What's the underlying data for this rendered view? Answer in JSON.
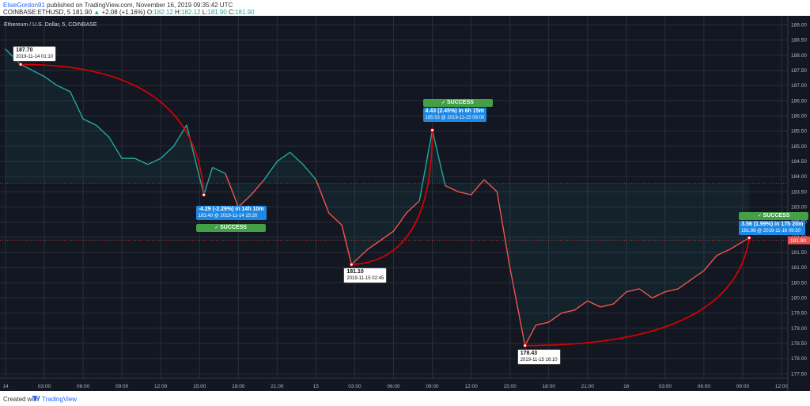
{
  "header": {
    "user": "ElsieGordon91",
    "published_text": " published on TradingView.com, November 16, 2019 09:35:42 UTC",
    "symbol": "COINBASE:ETHUSD, 5",
    "last": "181.90",
    "change_icon": "up-triangle-icon",
    "change": "+2.08 (+1.16%)",
    "open_label": "O:",
    "open": "182.12",
    "high_label": "H:",
    "high": "182.12",
    "low_label": "L:",
    "low": "181.90",
    "close_label": "C:",
    "close": "181.90"
  },
  "chart_data": {
    "type": "line",
    "title": "Ethereum / U.S. Dollar, 5, COINBASE",
    "ylim": [
      177.35,
      189.3
    ],
    "y_ticks": [
      "189.00",
      "188.50",
      "188.00",
      "187.50",
      "187.00",
      "186.50",
      "186.00",
      "185.50",
      "185.00",
      "184.50",
      "184.00",
      "183.50",
      "183.00",
      "182.50",
      "182.00",
      "181.50",
      "181.00",
      "180.50",
      "180.00",
      "179.50",
      "179.00",
      "178.50",
      "178.00",
      "177.50"
    ],
    "x_ticks": [
      "14",
      "03:00",
      "06:00",
      "09:00",
      "12:00",
      "15:00",
      "18:00",
      "21:00",
      "15",
      "03:00",
      "06:00",
      "09:00",
      "12:00",
      "15:00",
      "18:00",
      "21:00",
      "16",
      "03:00",
      "06:00",
      "09:00",
      "12:00"
    ],
    "x": [
      "2019-11-14 00:00",
      "2019-11-14 01:10",
      "2019-11-14 03:00",
      "2019-11-14 04:00",
      "2019-11-14 05:00",
      "2019-11-14 06:00",
      "2019-11-14 07:00",
      "2019-11-14 08:00",
      "2019-11-14 09:00",
      "2019-11-14 10:00",
      "2019-11-14 11:00",
      "2019-11-14 12:00",
      "2019-11-14 13:00",
      "2019-11-14 14:00",
      "2019-11-14 15:20",
      "2019-11-14 16:00",
      "2019-11-14 17:00",
      "2019-11-14 18:00",
      "2019-11-14 19:00",
      "2019-11-14 20:00",
      "2019-11-14 21:00",
      "2019-11-14 22:00",
      "2019-11-14 23:00",
      "2019-11-15 00:00",
      "2019-11-15 01:00",
      "2019-11-15 02:00",
      "2019-11-15 02:45",
      "2019-11-15 04:00",
      "2019-11-15 05:00",
      "2019-11-15 06:00",
      "2019-11-15 07:00",
      "2019-11-15 08:00",
      "2019-11-15 09:00",
      "2019-11-15 10:00",
      "2019-11-15 11:00",
      "2019-11-15 12:00",
      "2019-11-15 13:00",
      "2019-11-15 14:00",
      "2019-11-15 15:00",
      "2019-11-15 16:10",
      "2019-11-15 17:00",
      "2019-11-15 18:00",
      "2019-11-15 19:00",
      "2019-11-15 20:00",
      "2019-11-15 21:00",
      "2019-11-15 22:00",
      "2019-11-15 23:00",
      "2019-11-16 00:00",
      "2019-11-16 01:00",
      "2019-11-16 02:00",
      "2019-11-16 03:00",
      "2019-11-16 04:00",
      "2019-11-16 05:00",
      "2019-11-16 06:00",
      "2019-11-16 07:00",
      "2019-11-16 08:00",
      "2019-11-16 09:30"
    ],
    "series": [
      {
        "values": [
          188.2,
          187.7,
          187.3,
          187.0,
          186.8,
          185.9,
          185.7,
          185.3,
          184.6,
          184.6,
          184.4,
          184.6,
          185.0,
          185.7,
          183.4,
          184.3,
          184.1,
          183.0,
          183.4,
          183.9,
          184.5,
          184.8,
          184.4,
          183.9,
          182.8,
          182.4,
          181.1,
          181.6,
          181.9,
          182.2,
          182.8,
          183.2,
          185.53,
          183.7,
          183.5,
          183.4,
          183.9,
          183.5,
          181.0,
          178.43,
          179.1,
          179.2,
          179.5,
          179.6,
          179.9,
          179.7,
          179.8,
          180.2,
          180.3,
          180.0,
          180.2,
          180.3,
          180.6,
          180.9,
          181.4,
          181.6,
          181.98
        ]
      }
    ],
    "current_price": "181.90",
    "prev_close_level": 183.78,
    "annotations": [
      {
        "price_label": "187.70",
        "date": "2019-11-14 01:10"
      },
      {
        "price_label": "181.10",
        "date": "2019-11-15 02:45"
      },
      {
        "price_label": "178.43",
        "date": "2019-11-15 16:10"
      }
    ],
    "measurements": [
      {
        "change": "-4.29 (-2.29%) in 14h 10m",
        "detail": "183.40 @ 2019-11-14  15:20",
        "status": "SUCCESS",
        "status_icon": "check-icon",
        "from": 187.7,
        "to": 183.4
      },
      {
        "change": "4.43 (2.45%) in 6h 15m",
        "detail": "185.53 @ 2019-11-15  09:00",
        "status": "SUCCESS",
        "status_icon": "check-icon",
        "from": 181.1,
        "to": 185.53
      },
      {
        "change": "3.56 (1.99%) in 17h 20m",
        "detail": "181.98 @ 2019-11-16  09:30",
        "status": "SUCCESS",
        "status_icon": "check-icon",
        "from": 178.43,
        "to": 181.98
      }
    ],
    "colors": {
      "background": "#131722",
      "grid": "#2a2e39",
      "up": "#26a69a",
      "down": "#ef5350",
      "arc": "#e00000",
      "price_tag": "#ef5350"
    }
  },
  "footer": {
    "created": "Created with",
    "logo_icon": "tradingview-logo-icon",
    "brand": "TradingView"
  }
}
